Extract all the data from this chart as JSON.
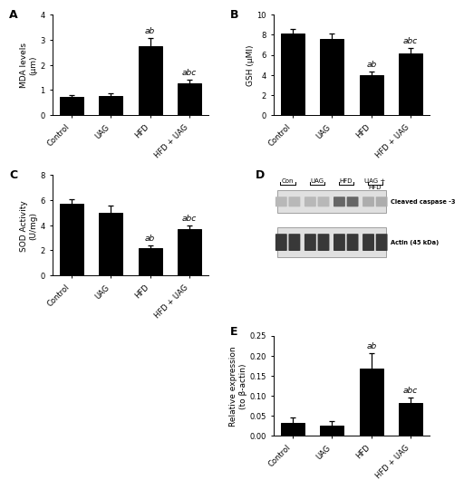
{
  "panel_A": {
    "title": "A",
    "categories": [
      "Control",
      "UAG",
      "HFD",
      "HFD + UAG"
    ],
    "values": [
      0.73,
      0.75,
      2.73,
      1.25
    ],
    "errors": [
      0.08,
      0.12,
      0.35,
      0.15
    ],
    "ylabel": "MDA levels\n(μm)",
    "ylim": [
      0,
      4
    ],
    "yticks": [
      0,
      1,
      2,
      3,
      4
    ],
    "significance": [
      "",
      "",
      "ab",
      "abc"
    ]
  },
  "panel_B": {
    "title": "B",
    "categories": [
      "Control",
      "UAG",
      "HFD",
      "HFD + UAG"
    ],
    "values": [
      8.1,
      7.6,
      4.0,
      6.1
    ],
    "errors": [
      0.5,
      0.5,
      0.3,
      0.6
    ],
    "ylabel": "GSH (μMl)",
    "ylim": [
      0,
      10
    ],
    "yticks": [
      0,
      2,
      4,
      6,
      8,
      10
    ],
    "significance": [
      "",
      "",
      "ab",
      "abc"
    ]
  },
  "panel_C": {
    "title": "C",
    "categories": [
      "Control",
      "UAG",
      "HFD",
      "HFD + UAG"
    ],
    "values": [
      5.7,
      5.0,
      2.15,
      3.7
    ],
    "errors": [
      0.35,
      0.55,
      0.25,
      0.3
    ],
    "ylabel": "SOD Activity\n(U/mg)",
    "ylim": [
      0,
      8
    ],
    "yticks": [
      0,
      2,
      4,
      6,
      8
    ],
    "significance": [
      "",
      "",
      "ab",
      "abc"
    ]
  },
  "panel_D": {
    "title": "D",
    "lane_labels": [
      "Con",
      "UAG",
      "HFD",
      "UAG +\nHFD"
    ],
    "band_label1": "Cleaved caspase -3",
    "band_label2": "Actin (45 kDa)",
    "blot_bg": 0.88,
    "caspase_bands_gray": [
      0.72,
      0.72,
      0.4,
      0.68
    ],
    "actin_bands_gray": [
      0.22,
      0.22,
      0.22,
      0.22
    ],
    "n_lanes_per_group": [
      2,
      2,
      2,
      2
    ]
  },
  "panel_E": {
    "title": "E",
    "categories": [
      "Control",
      "UAG",
      "HFD",
      "HFD + UAG"
    ],
    "values": [
      0.033,
      0.025,
      0.168,
      0.082
    ],
    "errors": [
      0.013,
      0.012,
      0.038,
      0.013
    ],
    "ylabel": "Relative expression\n(to β-actin)",
    "ylim": [
      0,
      0.25
    ],
    "yticks": [
      0.0,
      0.05,
      0.1,
      0.15,
      0.2,
      0.25
    ],
    "significance": [
      "",
      "",
      "ab",
      "abc"
    ]
  },
  "bar_color": "#000000",
  "background_color": "#ffffff",
  "label_fontsize": 6.5,
  "tick_fontsize": 6,
  "title_fontsize": 9,
  "sig_fontsize": 6.5
}
